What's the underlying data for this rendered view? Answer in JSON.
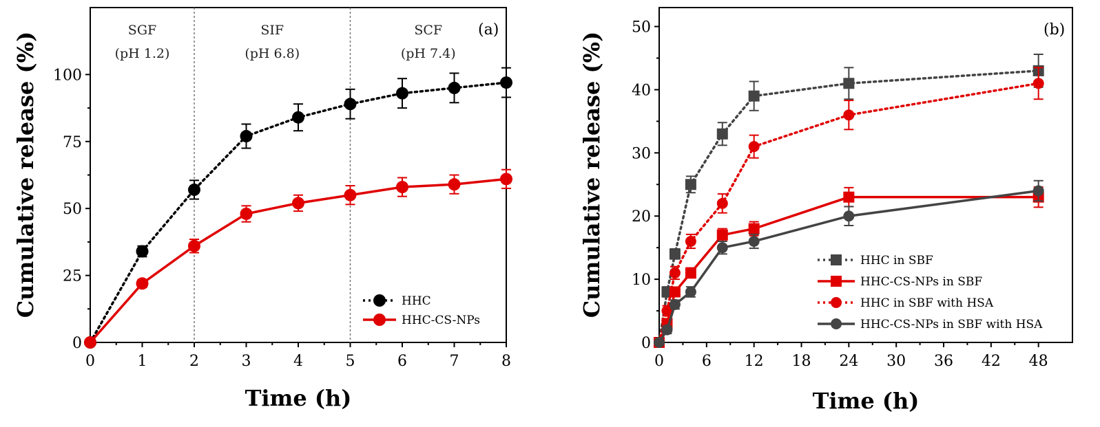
{
  "chart_data": [
    {
      "type": "line",
      "panel_label": "(a)",
      "xlabel": "Time (h)",
      "ylabel": "Cumulative  release (%)",
      "xlim": [
        0,
        8
      ],
      "ylim": [
        0,
        125
      ],
      "xticks": [
        0,
        1,
        2,
        3,
        4,
        5,
        6,
        7,
        8
      ],
      "yticks": [
        0,
        25,
        50,
        75,
        100
      ],
      "regions": [
        {
          "name": "SGF",
          "sub": "(pH 1.2)",
          "x_center": 1
        },
        {
          "name": "SIF",
          "sub": "(pH 6.8)",
          "x_center": 3.5
        },
        {
          "name": "SCF",
          "sub": "(pH 7.4)",
          "x_center": 6.5
        }
      ],
      "region_dividers": [
        2,
        5
      ],
      "legend_position": "bottom-right",
      "series": [
        {
          "name": "HHC",
          "color": "#000000",
          "line": "dotted",
          "marker": "circle",
          "x": [
            0,
            1,
            2,
            3,
            4,
            5,
            6,
            7,
            8
          ],
          "y": [
            0,
            34,
            57,
            77,
            84,
            89,
            93,
            95,
            97
          ],
          "err": [
            0,
            2,
            3.5,
            4.5,
            5,
            5.5,
            5.5,
            5.5,
            5.5
          ]
        },
        {
          "name": "HHC-CS-NPs",
          "color": "#e00000",
          "line": "solid",
          "marker": "circle",
          "x": [
            0,
            1,
            2,
            3,
            4,
            5,
            6,
            7,
            8
          ],
          "y": [
            0,
            22,
            36,
            48,
            52,
            55,
            58,
            59,
            61
          ],
          "err": [
            0,
            1.5,
            2.5,
            3,
            3,
            3.5,
            3.5,
            3.5,
            3.5
          ]
        }
      ]
    },
    {
      "type": "line",
      "panel_label": "(b)",
      "xlabel": "Time (h)",
      "ylabel": "Cumulative release (%)",
      "xlim": [
        0,
        52.3
      ],
      "ylim": [
        0,
        53
      ],
      "xticks": [
        0,
        6,
        12,
        18,
        24,
        30,
        36,
        42,
        48
      ],
      "yticks": [
        0,
        10,
        20,
        30,
        40,
        50
      ],
      "legend_position": "bottom-right",
      "series": [
        {
          "name": "HHC in SBF",
          "color": "#444444",
          "line": "dotted",
          "marker": "square",
          "x": [
            0,
            1,
            2,
            4,
            8,
            12,
            24,
            48
          ],
          "y": [
            0,
            8,
            14,
            25,
            33,
            39,
            41,
            43
          ],
          "err": [
            0,
            0.8,
            0.8,
            1.3,
            1.8,
            2.3,
            2.5,
            2.6
          ]
        },
        {
          "name": "HHC-CS-NPs in SBF",
          "color": "#e00000",
          "line": "solid",
          "marker": "square",
          "x": [
            0,
            1,
            2,
            4,
            8,
            12,
            24,
            48
          ],
          "y": [
            0,
            3,
            8,
            11,
            17,
            18,
            23,
            23
          ],
          "err": [
            0,
            0.6,
            0.6,
            0.8,
            1.0,
            1.1,
            1.5,
            1.6
          ]
        },
        {
          "name": "HHC in SBF with HSA",
          "color": "#e00000",
          "line": "dotted",
          "marker": "circle",
          "x": [
            0,
            1,
            2,
            4,
            8,
            12,
            24,
            48
          ],
          "y": [
            0,
            5,
            11,
            16,
            22,
            31,
            36,
            41
          ],
          "err": [
            0,
            0.8,
            1.0,
            1.1,
            1.5,
            1.8,
            2.3,
            2.5
          ]
        },
        {
          "name": "HHC-CS-NPs in SBF with HSA",
          "color": "#444444",
          "line": "solid",
          "marker": "circle",
          "x": [
            0,
            1,
            2,
            4,
            8,
            12,
            24,
            48
          ],
          "y": [
            0,
            2,
            6,
            8,
            15,
            16,
            20,
            24
          ],
          "err": [
            0,
            0.6,
            0.7,
            0.8,
            1.0,
            1.1,
            1.5,
            1.6
          ]
        }
      ]
    }
  ]
}
